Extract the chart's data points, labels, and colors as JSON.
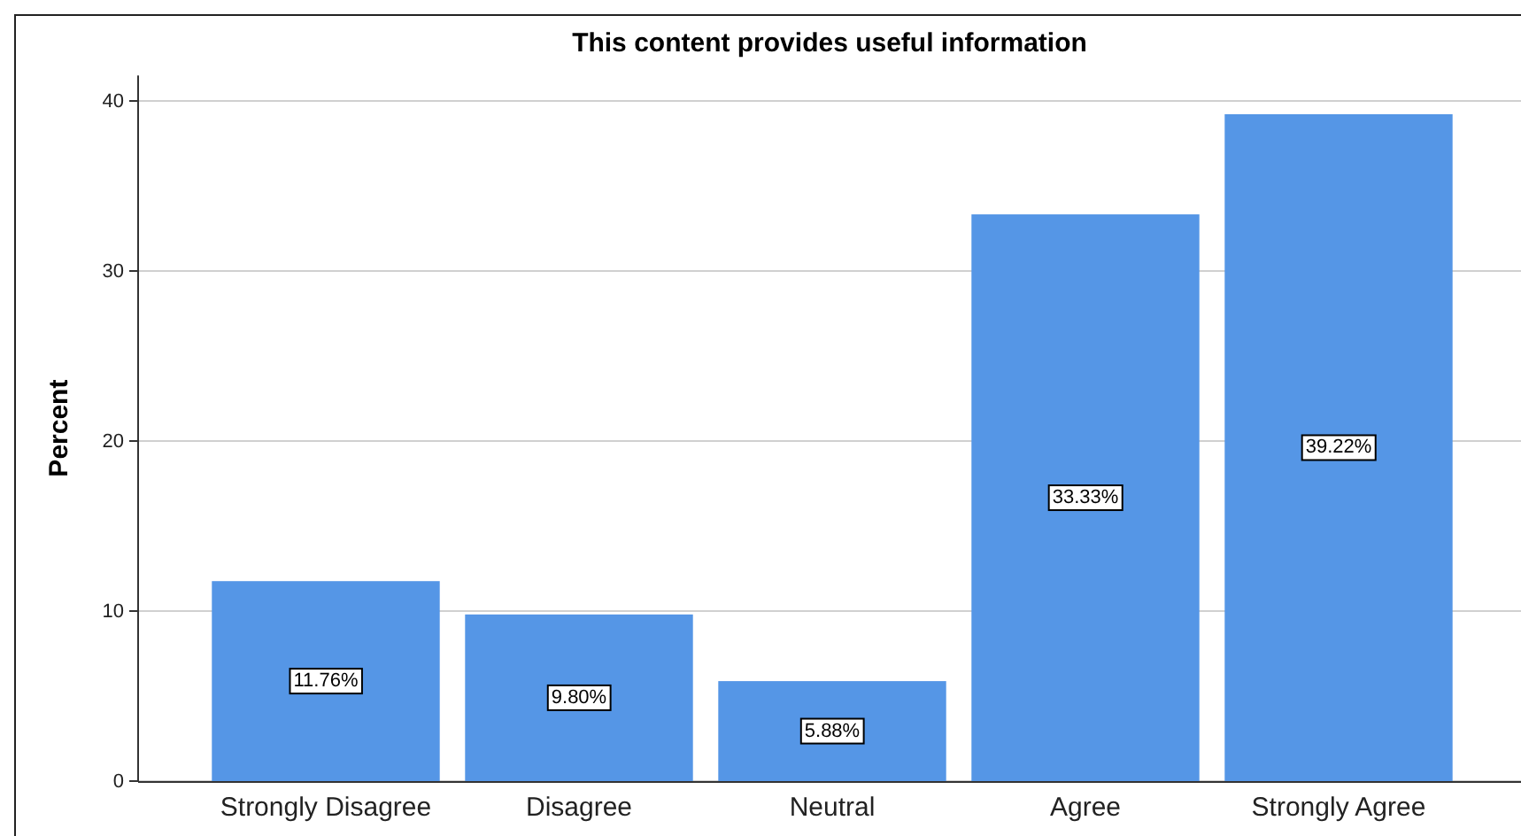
{
  "chart_data": {
    "type": "bar",
    "title": "This content provides useful information",
    "ylabel": "Percent",
    "categories": [
      "Strongly Disagree",
      "Disagree",
      "Neutral",
      "Agree",
      "Strongly Agree"
    ],
    "values": [
      11.76,
      9.8,
      5.88,
      33.33,
      39.22
    ],
    "color": "#5596e6",
    "value_labels": [
      "11.76%",
      "9.80%",
      "5.88%",
      "33.33%",
      "39.22%"
    ],
    "ylim": [
      0,
      41.5
    ],
    "yticks": [
      0,
      10,
      20,
      30,
      40
    ],
    "grid": "y"
  }
}
